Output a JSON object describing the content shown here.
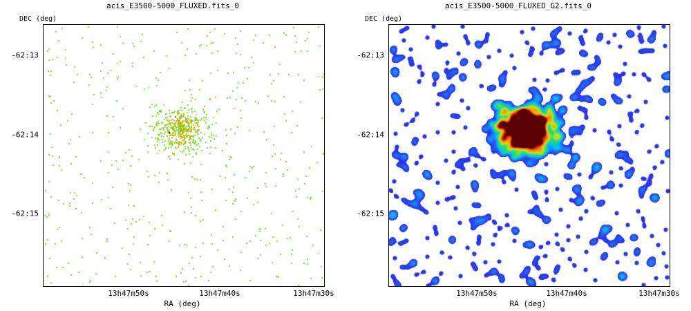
{
  "panels": [
    {
      "title": "acis_E3500-5000_FLUXED.fits_0",
      "ylabel": "DEC (deg)",
      "xlabel": "RA (deg)",
      "yticks": [
        "-62:13",
        "-62:14",
        "-62:15"
      ],
      "xticks": [
        "13h47m50s",
        "13h47m40s",
        "13h47m30s"
      ]
    },
    {
      "title": "acis_E3500-5000_FLUXED_G2.fits_0",
      "ylabel": "DEC (deg)",
      "xlabel": "RA (deg)",
      "yticks": [
        "-62:13",
        "-62:14",
        "-62:15"
      ],
      "xticks": [
        "13h47m50s",
        "13h47m40s",
        "13h47m30s"
      ]
    }
  ]
}
